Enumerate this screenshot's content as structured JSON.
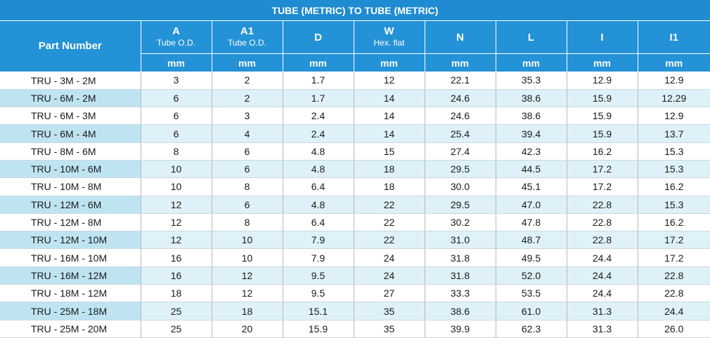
{
  "title": "TUBE (METRIC) TO TUBE (METRIC)",
  "headers": {
    "part_number": "Part Number",
    "columns": [
      {
        "label": "A",
        "sub": "Tube O.D."
      },
      {
        "label": "A1",
        "sub": "Tube O.D."
      },
      {
        "label": "D",
        "sub": ""
      },
      {
        "label": "W",
        "sub": "Hex. flat"
      },
      {
        "label": "N",
        "sub": ""
      },
      {
        "label": "L",
        "sub": ""
      },
      {
        "label": "I",
        "sub": ""
      },
      {
        "label": "I1",
        "sub": ""
      }
    ],
    "units": [
      "mm",
      "mm",
      "mm",
      "mm",
      "mm",
      "mm",
      "mm",
      "mm"
    ]
  },
  "rows": [
    [
      "TRU - 3M - 2M",
      "3",
      "2",
      "1.7",
      "12",
      "22.1",
      "35.3",
      "12.9",
      "12.9"
    ],
    [
      "TRU - 6M - 2M",
      "6",
      "2",
      "1.7",
      "14",
      "24.6",
      "38.6",
      "15.9",
      "12.29"
    ],
    [
      "TRU - 6M - 3M",
      "6",
      "3",
      "2.4",
      "14",
      "24.6",
      "38.6",
      "15.9",
      "12.9"
    ],
    [
      "TRU - 6M - 4M",
      "6",
      "4",
      "2.4",
      "14",
      "25.4",
      "39.4",
      "15.9",
      "13.7"
    ],
    [
      "TRU - 8M - 6M",
      "8",
      "6",
      "4.8",
      "15",
      "27.4",
      "42.3",
      "16.2",
      "15.3"
    ],
    [
      "TRU - 10M - 6M",
      "10",
      "6",
      "4.8",
      "18",
      "29.5",
      "44.5",
      "17.2",
      "15.3"
    ],
    [
      "TRU - 10M - 8M",
      "10",
      "8",
      "6.4",
      "18",
      "30.0",
      "45.1",
      "17.2",
      "16.2"
    ],
    [
      "TRU - 12M - 6M",
      "12",
      "6",
      "4.8",
      "22",
      "29.5",
      "47.0",
      "22.8",
      "15.3"
    ],
    [
      "TRU - 12M - 8M",
      "12",
      "8",
      "6.4",
      "22",
      "30.2",
      "47.8",
      "22.8",
      "16.2"
    ],
    [
      "TRU - 12M - 10M",
      "12",
      "10",
      "7.9",
      "22",
      "31.0",
      "48.7",
      "22.8",
      "17.2"
    ],
    [
      "TRU - 16M - 10M",
      "16",
      "10",
      "7.9",
      "24",
      "31.8",
      "49.5",
      "24.4",
      "17.2"
    ],
    [
      "TRU - 16M - 12M",
      "16",
      "12",
      "9.5",
      "24",
      "31.8",
      "52.0",
      "24.4",
      "22.8"
    ],
    [
      "TRU - 18M - 12M",
      "18",
      "12",
      "9.5",
      "27",
      "33.3",
      "53.5",
      "24.4",
      "22.8"
    ],
    [
      "TRU - 25M - 18M",
      "25",
      "18",
      "15.1",
      "35",
      "38.6",
      "61.0",
      "31.3",
      "24.4"
    ],
    [
      "TRU - 25M - 20M",
      "25",
      "20",
      "15.9",
      "35",
      "39.9",
      "62.3",
      "31.3",
      "26.0"
    ]
  ],
  "colors": {
    "header_blue": "#2492d6",
    "title_blue": "#1f8bd1",
    "row_alt": "#dff1f8",
    "row_alt_part": "#bfe4f1"
  }
}
